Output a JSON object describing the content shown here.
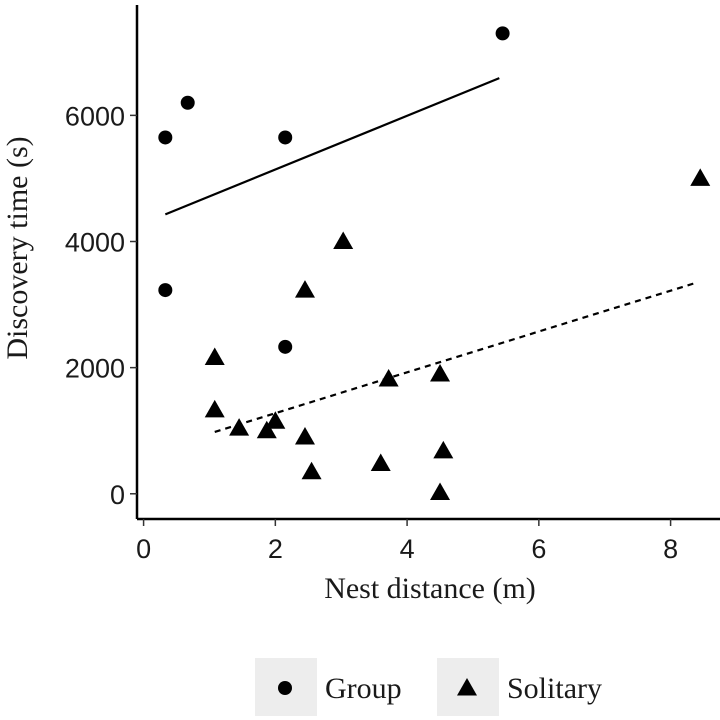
{
  "chart_data": {
    "type": "scatter",
    "xlabel": "Nest distance (m)",
    "ylabel": "Discovery time (s)",
    "xlim": [
      -0.1,
      8.75
    ],
    "ylim": [
      -400,
      7750
    ],
    "x_ticks": [
      0,
      2,
      4,
      6,
      8
    ],
    "y_ticks": [
      0,
      2000,
      4000,
      6000
    ],
    "grid": false,
    "legend_position": "bottom",
    "series": [
      {
        "name": "Group",
        "marker": "circle",
        "color": "#000000",
        "points": [
          [
            0.33,
            5650
          ],
          [
            0.67,
            6200
          ],
          [
            2.15,
            5650
          ],
          [
            5.45,
            7300
          ],
          [
            0.33,
            3230
          ],
          [
            2.15,
            2330
          ]
        ],
        "trend": {
          "x": [
            0.33,
            5.4
          ],
          "y": [
            4430,
            6590
          ],
          "dash": false
        }
      },
      {
        "name": "Solitary",
        "marker": "triangle",
        "color": "#000000",
        "points": [
          [
            1.08,
            2160
          ],
          [
            1.08,
            1330
          ],
          [
            1.45,
            1040
          ],
          [
            1.87,
            1000
          ],
          [
            2.0,
            1150
          ],
          [
            2.45,
            3230
          ],
          [
            2.45,
            900
          ],
          [
            2.55,
            350
          ],
          [
            3.03,
            4000
          ],
          [
            3.6,
            480
          ],
          [
            3.72,
            1820
          ],
          [
            4.5,
            1900
          ],
          [
            4.5,
            20
          ],
          [
            4.55,
            680
          ],
          [
            8.45,
            5000
          ]
        ],
        "trend": {
          "x": [
            1.08,
            8.4
          ],
          "y": [
            980,
            3350
          ],
          "dash": true
        }
      }
    ]
  }
}
